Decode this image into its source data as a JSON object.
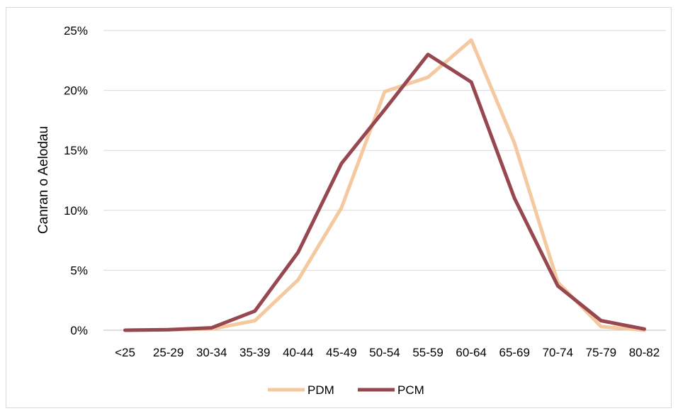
{
  "chart_data": {
    "type": "line",
    "title": "",
    "xlabel": "",
    "ylabel": "Canran o Aelodau",
    "categories": [
      "<25",
      "25-29",
      "30-34",
      "35-39",
      "40-44",
      "45-49",
      "50-54",
      "55-59",
      "60-64",
      "65-69",
      "70-74",
      "75-79",
      "80-82"
    ],
    "y_ticks": [
      "0%",
      "5%",
      "10%",
      "15%",
      "20%",
      "25%"
    ],
    "ylim": [
      0,
      25
    ],
    "grid": true,
    "legend_position": "bottom",
    "series": [
      {
        "name": "PDM",
        "color": "#f5c9a0",
        "values": [
          0.0,
          0.05,
          0.1,
          0.8,
          4.2,
          10.2,
          19.9,
          21.1,
          24.2,
          15.6,
          4.0,
          0.3,
          0.0
        ]
      },
      {
        "name": "PCM",
        "color": "#96474f",
        "values": [
          0.0,
          0.05,
          0.2,
          1.6,
          6.5,
          13.9,
          18.4,
          23.0,
          20.7,
          11.0,
          3.7,
          0.8,
          0.1
        ]
      }
    ]
  }
}
